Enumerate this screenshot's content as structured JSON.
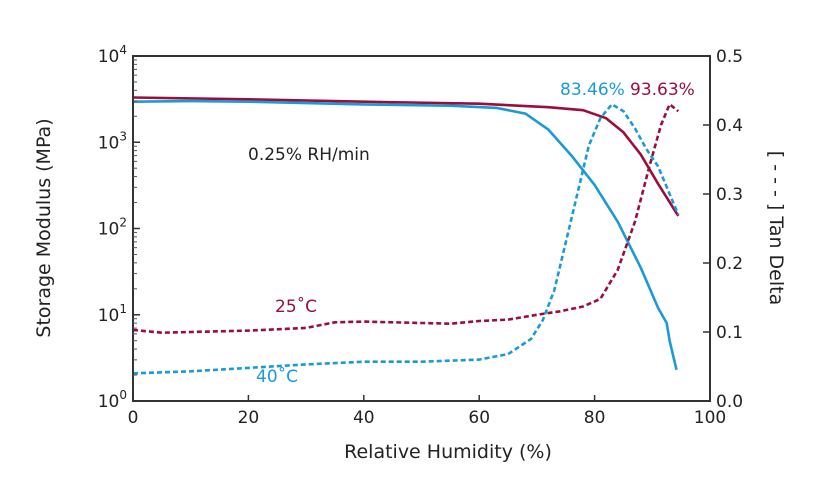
{
  "chart_data": {
    "type": "line",
    "xlabel": "Relative Humidity (%)",
    "ylabel_left": "Storage Modulus (MPa)",
    "ylabel_right": "[ - - - ] Tan Delta",
    "x_range": [
      0,
      100
    ],
    "x_ticks": [
      "0",
      "20",
      "40",
      "60",
      "80",
      "100"
    ],
    "y_left_scale": "log",
    "y_left_range": [
      1,
      10000
    ],
    "y_left_ticks": [
      {
        "base": "10",
        "exp": "0"
      },
      {
        "base": "10",
        "exp": "1"
      },
      {
        "base": "10",
        "exp": "2"
      },
      {
        "base": "10",
        "exp": "3"
      },
      {
        "base": "10",
        "exp": "4"
      }
    ],
    "y_right_range": [
      0.0,
      0.5
    ],
    "y_right_ticks": [
      "0.0",
      "0.1",
      "0.2",
      "0.3",
      "0.4",
      "0.5"
    ],
    "grid": false,
    "colors": {
      "c25": "#9a0e3a",
      "c40": "#1a9ad6"
    },
    "series": [
      {
        "name": "25°C",
        "kind": "storage_modulus",
        "axis": "left",
        "style": "solid",
        "color": "#9a0e3a",
        "points": [
          [
            0,
            3300
          ],
          [
            20,
            3150
          ],
          [
            40,
            2950
          ],
          [
            60,
            2800
          ],
          [
            72,
            2550
          ],
          [
            78,
            2350
          ],
          [
            82,
            1900
          ],
          [
            85,
            1300
          ],
          [
            88,
            720
          ],
          [
            91,
            330
          ],
          [
            94.5,
            140
          ]
        ]
      },
      {
        "name": "40°C",
        "kind": "storage_modulus",
        "axis": "left",
        "style": "solid",
        "color": "#1a9ad6",
        "points": [
          [
            0,
            2950
          ],
          [
            10,
            3000
          ],
          [
            20,
            2950
          ],
          [
            40,
            2750
          ],
          [
            55,
            2650
          ],
          [
            63,
            2500
          ],
          [
            68,
            2150
          ],
          [
            72,
            1400
          ],
          [
            76,
            700
          ],
          [
            80,
            320
          ],
          [
            84,
            120
          ],
          [
            88,
            35
          ],
          [
            91,
            12
          ],
          [
            92.5,
            8
          ],
          [
            93,
            5
          ],
          [
            94.2,
            2.3
          ]
        ]
      },
      {
        "name": "25°C",
        "kind": "tan_delta",
        "axis": "right",
        "style": "dashed",
        "color": "#9a0e3a",
        "points": [
          [
            0,
            0.103
          ],
          [
            5,
            0.099
          ],
          [
            10,
            0.1
          ],
          [
            20,
            0.102
          ],
          [
            30,
            0.106
          ],
          [
            35,
            0.114
          ],
          [
            40,
            0.115
          ],
          [
            50,
            0.113
          ],
          [
            55,
            0.112
          ],
          [
            60,
            0.116
          ],
          [
            65,
            0.118
          ],
          [
            70,
            0.125
          ],
          [
            74,
            0.13
          ],
          [
            78,
            0.137
          ],
          [
            81,
            0.148
          ],
          [
            84,
            0.19
          ],
          [
            87,
            0.26
          ],
          [
            89.5,
            0.34
          ],
          [
            91.5,
            0.4
          ],
          [
            93,
            0.43
          ],
          [
            94.5,
            0.42
          ]
        ]
      },
      {
        "name": "40°C",
        "kind": "tan_delta",
        "axis": "right",
        "style": "dashed",
        "color": "#1a9ad6",
        "points": [
          [
            0,
            0.04
          ],
          [
            10,
            0.043
          ],
          [
            20,
            0.048
          ],
          [
            30,
            0.053
          ],
          [
            40,
            0.057
          ],
          [
            50,
            0.057
          ],
          [
            60,
            0.06
          ],
          [
            65,
            0.068
          ],
          [
            69,
            0.09
          ],
          [
            71,
            0.117
          ],
          [
            73,
            0.16
          ],
          [
            75,
            0.23
          ],
          [
            77,
            0.3
          ],
          [
            79,
            0.37
          ],
          [
            81,
            0.41
          ],
          [
            83,
            0.43
          ],
          [
            85,
            0.42
          ],
          [
            87,
            0.395
          ],
          [
            89,
            0.365
          ],
          [
            91,
            0.34
          ],
          [
            93,
            0.3
          ],
          [
            94.5,
            0.27
          ]
        ]
      }
    ],
    "annotations": {
      "rate": "0.25% RH/min",
      "label_25": "25˚C",
      "label_40": "40˚C",
      "peak_40": "83.46%",
      "peak_25": "93.63%"
    }
  }
}
